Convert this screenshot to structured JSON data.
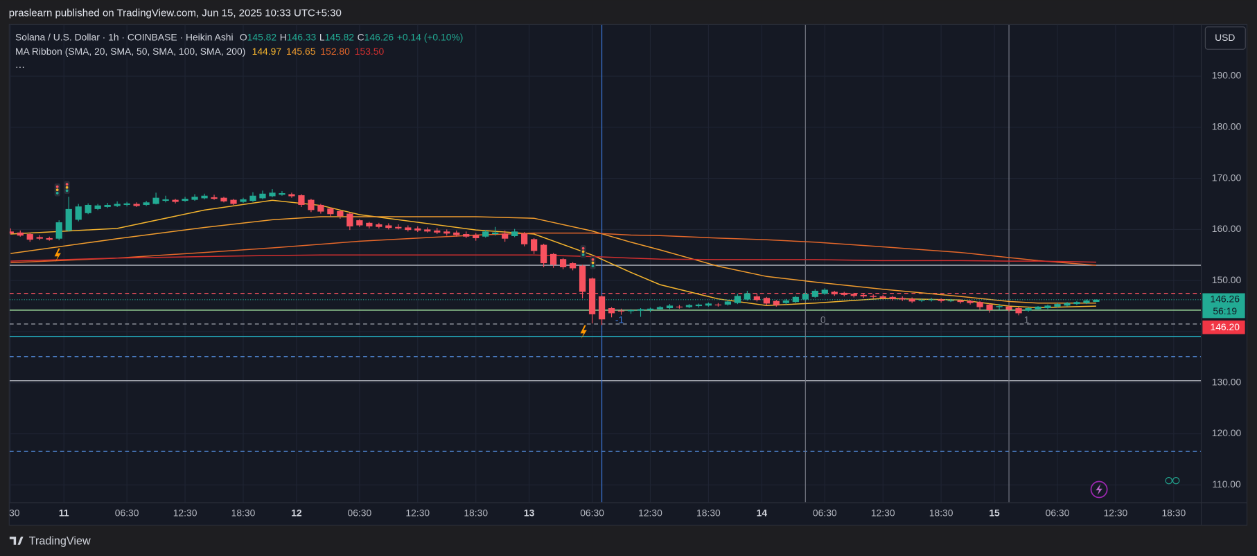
{
  "header": {
    "title": "praslearn published on TradingView.com, Jun 15, 2025 10:33 UTC+5:30"
  },
  "legend": {
    "symbol": "Solana / U.S. Dollar · 1h · COINBASE · Heikin Ashi",
    "ohlc": [
      {
        "label": "O",
        "value": "145.82"
      },
      {
        "label": "H",
        "value": "146.33"
      },
      {
        "label": "L",
        "value": "145.82"
      },
      {
        "label": "C",
        "value": "146.26"
      }
    ],
    "change": "+0.14 (+0.10%)",
    "ma_title": "MA Ribbon (SMA, 20, SMA, 50, SMA, 100, SMA, 200)",
    "ma_values": [
      "144.97",
      "145.65",
      "152.80",
      "153.50"
    ],
    "more": "···"
  },
  "currency": "USD",
  "price_tags": {
    "countdown": "56:19",
    "other": "146.20"
  },
  "footer": {
    "brand": "TradingView"
  },
  "chart_data": {
    "type": "candlestick",
    "up_color": "#22ab94",
    "down_color": "#f7525f",
    "grid": true,
    "xlim": [
      -5.6,
      117.3
    ],
    "ylim": [
      106.6,
      200.2
    ],
    "xticks": [
      {
        "value": -5.5,
        "label": "30"
      },
      {
        "value": 0,
        "label": "11"
      },
      {
        "value": 6.5,
        "label": "06:30"
      },
      {
        "value": 12.5,
        "label": "12:30"
      },
      {
        "value": 18.5,
        "label": "18:30"
      },
      {
        "value": 24,
        "label": "12"
      },
      {
        "value": 30.5,
        "label": "06:30"
      },
      {
        "value": 36.5,
        "label": "12:30"
      },
      {
        "value": 42.5,
        "label": "18:30"
      },
      {
        "value": 48,
        "label": "13"
      },
      {
        "value": 54.5,
        "label": "06:30"
      },
      {
        "value": 60.5,
        "label": "12:30"
      },
      {
        "value": 66.5,
        "label": "18:30"
      },
      {
        "value": 72,
        "label": "14"
      },
      {
        "value": 78.5,
        "label": "06:30"
      },
      {
        "value": 84.5,
        "label": "12:30"
      },
      {
        "value": 90.5,
        "label": "18:30"
      },
      {
        "value": 96,
        "label": "15"
      },
      {
        "value": 102.5,
        "label": "06:30"
      },
      {
        "value": 108.5,
        "label": "12:30"
      },
      {
        "value": 114.5,
        "label": "18:30"
      }
    ],
    "yticks": [
      {
        "value": 110,
        "label": "110.00"
      },
      {
        "value": 120,
        "label": "120.00"
      },
      {
        "value": 130,
        "label": "130.00"
      },
      {
        "value": 140,
        "label": "140.00"
      },
      {
        "value": 150,
        "label": "150.00"
      },
      {
        "value": 160,
        "label": "160.00"
      },
      {
        "value": 170,
        "label": "170.00"
      },
      {
        "value": 180,
        "label": "180.00"
      },
      {
        "value": 190,
        "label": "190.00"
      }
    ],
    "x": [
      -5.5,
      -4.5,
      -3.5,
      -2.5,
      -1.5,
      -0.5,
      0.5,
      1.5,
      2.5,
      3.5,
      4.5,
      5.5,
      6.5,
      7.5,
      8.5,
      9.5,
      10.5,
      11.5,
      12.5,
      13.5,
      14.5,
      15.5,
      16.5,
      17.5,
      18.5,
      19.5,
      20.5,
      21.5,
      22.5,
      23.5,
      24.5,
      25.5,
      26.5,
      27.5,
      28.5,
      29.5,
      30.5,
      31.5,
      32.5,
      33.5,
      34.5,
      35.5,
      36.5,
      37.5,
      38.5,
      39.5,
      40.5,
      41.5,
      42.5,
      43.5,
      44.5,
      45.5,
      46.5,
      47.5,
      48.5,
      49.5,
      50.5,
      51.5,
      52.5,
      53.5,
      54.5,
      55.5,
      56.5,
      57.5,
      58.5,
      59.5,
      60.5,
      61.5,
      62.5,
      63.5,
      64.5,
      65.5,
      66.5,
      67.5,
      68.5,
      69.5,
      70.5,
      71.5,
      72.5,
      73.5,
      74.5,
      75.5,
      76.5,
      77.5,
      78.5,
      79.5,
      80.5,
      81.5,
      82.5,
      83.5,
      84.5,
      85.5,
      86.5,
      87.5,
      88.5,
      89.5,
      90.5,
      91.5,
      92.5,
      93.5,
      94.5,
      95.5,
      96.5,
      97.5,
      98.5,
      99.5,
      100.5,
      101.5,
      102.5,
      103.5,
      104.5,
      105.5,
      106.5
    ],
    "open": [
      159.6,
      159.4,
      159.1,
      158.5,
      158.3,
      158.2,
      159.8,
      161.9,
      163.2,
      164.0,
      164.4,
      164.6,
      164.8,
      165.0,
      164.8,
      165.0,
      165.6,
      165.8,
      165.6,
      165.8,
      166.1,
      166.3,
      166.2,
      165.8,
      165.4,
      165.6,
      166.1,
      166.5,
      166.8,
      166.9,
      166.7,
      165.8,
      164.8,
      164.1,
      163.6,
      163.1,
      161.8,
      161.3,
      161.0,
      160.8,
      160.5,
      160.4,
      160.2,
      160.0,
      159.8,
      159.6,
      159.4,
      159.1,
      158.9,
      158.6,
      159.1,
      159.2,
      158.7,
      159.2,
      158.1,
      157.0,
      155.2,
      154.2,
      153.4,
      152.9,
      150.4,
      146.9,
      144.6,
      144.1,
      144.0,
      144.1,
      144.2,
      144.4,
      144.6,
      144.9,
      144.8,
      145.0,
      145.1,
      145.3,
      145.3,
      145.6,
      146.3,
      146.9,
      146.6,
      146.0,
      145.6,
      145.8,
      146.3,
      146.8,
      147.4,
      147.8,
      147.6,
      147.4,
      147.2,
      147.0,
      146.9,
      146.8,
      146.6,
      146.4,
      146.2,
      146.2,
      146.3,
      146.1,
      146.1,
      146.0,
      145.8,
      145.3,
      144.8,
      144.9,
      144.6,
      144.1,
      144.4,
      144.6,
      144.9,
      145.1,
      145.4,
      145.6,
      145.82
    ],
    "high": [
      160.2,
      159.8,
      159.4,
      158.9,
      158.6,
      161.8,
      166.4,
      165.0,
      165.1,
      165.0,
      165.2,
      165.5,
      165.4,
      165.3,
      165.6,
      167.2,
      166.6,
      166.0,
      166.4,
      166.9,
      167.0,
      166.8,
      166.4,
      166.0,
      166.2,
      167.3,
      167.6,
      167.9,
      167.5,
      167.2,
      166.9,
      166.0,
      165.0,
      164.3,
      163.8,
      163.3,
      162.0,
      161.5,
      161.3,
      161.2,
      161.0,
      160.8,
      160.6,
      160.4,
      160.3,
      160.0,
      159.8,
      159.6,
      159.3,
      159.9,
      160.5,
      159.8,
      160.1,
      159.5,
      158.3,
      157.2,
      155.4,
      154.4,
      153.6,
      153.1,
      150.6,
      147.1,
      144.8,
      144.5,
      144.4,
      144.6,
      144.7,
      145.0,
      145.4,
      145.2,
      145.4,
      145.5,
      145.7,
      145.6,
      146.2,
      147.4,
      148.0,
      147.5,
      146.8,
      146.2,
      146.4,
      147.0,
      147.7,
      148.3,
      148.5,
      148.0,
      147.8,
      147.6,
      147.5,
      147.3,
      147.2,
      147.0,
      146.9,
      146.7,
      146.5,
      146.6,
      146.5,
      146.4,
      146.3,
      146.2,
      146.0,
      145.5,
      145.4,
      145.1,
      144.8,
      144.8,
      145.0,
      145.3,
      145.6,
      145.8,
      146.0,
      146.3,
      146.33
    ],
    "low": [
      159.0,
      158.6,
      157.6,
      157.9,
      157.8,
      157.9,
      159.6,
      161.6,
      163.0,
      163.8,
      164.2,
      164.4,
      164.5,
      164.4,
      164.6,
      164.9,
      165.3,
      165.1,
      165.4,
      165.6,
      165.9,
      165.8,
      165.3,
      164.8,
      165.2,
      165.4,
      165.9,
      166.3,
      166.6,
      166.2,
      164.4,
      163.4,
      163.1,
      162.6,
      162.1,
      159.9,
      160.5,
      160.2,
      160.2,
      160.0,
      160.0,
      159.6,
      159.5,
      159.4,
      159.1,
      158.8,
      158.6,
      158.3,
      157.8,
      158.4,
      158.8,
      157.6,
      158.5,
      156.7,
      155.2,
      152.6,
      152.5,
      152.2,
      152.0,
      146.5,
      141.6,
      141.3,
      142.8,
      143.3,
      143.5,
      142.9,
      143.8,
      144.2,
      144.4,
      144.5,
      144.6,
      144.7,
      144.9,
      144.9,
      145.1,
      145.4,
      146.1,
      145.9,
      145.1,
      144.9,
      145.3,
      145.6,
      146.1,
      146.6,
      147.2,
      147.0,
      146.9,
      146.7,
      146.6,
      146.5,
      146.3,
      146.1,
      146.0,
      145.6,
      145.8,
      145.9,
      145.7,
      145.8,
      145.5,
      145.3,
      144.3,
      143.7,
      144.3,
      143.9,
      143.2,
      143.9,
      144.2,
      144.4,
      144.7,
      144.9,
      145.2,
      145.4,
      145.82
    ],
    "close": [
      159.2,
      158.8,
      158.0,
      158.2,
      158.0,
      161.4,
      164.0,
      164.5,
      164.8,
      164.7,
      164.8,
      165.0,
      165.1,
      164.6,
      165.3,
      166.2,
      165.9,
      165.4,
      166.0,
      166.4,
      166.6,
      166.0,
      165.5,
      165.0,
      165.9,
      166.6,
      167.0,
      167.2,
      167.1,
      166.5,
      164.8,
      163.8,
      163.5,
      163.0,
      162.6,
      160.6,
      160.8,
      160.6,
      160.5,
      160.3,
      160.2,
      159.9,
      159.8,
      159.6,
      159.4,
      159.2,
      158.9,
      158.6,
      158.3,
      159.6,
      159.4,
      158.2,
      159.6,
      157.1,
      155.8,
      153.4,
      153.1,
      152.6,
      152.4,
      147.8,
      143.4,
      142.4,
      143.6,
      144.0,
      144.2,
      144.4,
      144.5,
      144.8,
      145.1,
      144.8,
      145.2,
      145.3,
      145.5,
      145.2,
      145.9,
      147.0,
      147.5,
      146.2,
      145.5,
      145.2,
      146.1,
      146.8,
      147.4,
      148.0,
      148.2,
      147.3,
      147.2,
      147.0,
      146.9,
      146.8,
      146.6,
      146.4,
      146.3,
      145.9,
      146.2,
      146.3,
      146.0,
      146.1,
      145.8,
      145.6,
      144.8,
      144.2,
      145.0,
      144.3,
      143.6,
      144.6,
      144.9,
      145.1,
      145.4,
      145.6,
      145.8,
      146.1,
      146.26
    ],
    "ma_lines": [
      {
        "color": "#f5b52e",
        "x": [
          -5.5,
          5.5,
          14.5,
          21.5,
          26.5,
          30.5,
          42.5,
          48.5,
          54.5,
          58.5,
          61.5,
          67.5,
          72.5,
          77.5,
          84.5,
          92.5,
          97.5,
          100.5,
          106.5
        ],
        "values": [
          159.1,
          160.2,
          163.8,
          165.7,
          164.7,
          162.9,
          159.9,
          159.1,
          155.0,
          151.6,
          149.2,
          146.4,
          145.1,
          145.6,
          146.5,
          146.2,
          145.0,
          144.7,
          145.0
        ]
      },
      {
        "color": "#f29d2e",
        "x": [
          -5.5,
          5.5,
          14.5,
          21.5,
          26.5,
          30.5,
          42.5,
          48.5,
          54.5,
          58.5,
          61.5,
          67.5,
          72.5,
          77.5,
          84.5,
          92.5,
          97.5,
          100.5,
          106.5
        ],
        "values": [
          155.3,
          158.2,
          160.4,
          161.9,
          162.5,
          162.5,
          162.5,
          162.2,
          159.7,
          157.5,
          156.0,
          152.8,
          150.8,
          149.7,
          148.3,
          146.9,
          145.9,
          145.6,
          145.6
        ]
      },
      {
        "color": "#e5672a",
        "x": [
          -5.5,
          5.5,
          14.5,
          21.5,
          26.5,
          30.5,
          42.5,
          48.5,
          54.5,
          58.5,
          61.5,
          67.5,
          72.5,
          77.5,
          84.5,
          92.5,
          97.5,
          100.5,
          106.5
        ],
        "values": [
          153.5,
          154.4,
          155.5,
          156.4,
          157.1,
          157.7,
          158.9,
          159.3,
          159.3,
          158.9,
          158.8,
          158.3,
          158.0,
          157.5,
          156.6,
          155.5,
          154.5,
          153.9,
          153.0
        ]
      },
      {
        "color": "#d32f2f",
        "x": [
          -5.5,
          5.5,
          14.5,
          21.5,
          26.5,
          30.5,
          42.5,
          48.5,
          54.5,
          58.5,
          61.5,
          67.5,
          72.5,
          77.5,
          84.5,
          92.5,
          97.5,
          100.5,
          106.5
        ],
        "values": [
          153.8,
          154.4,
          154.7,
          154.9,
          155.0,
          155.0,
          155.0,
          155.0,
          154.7,
          154.4,
          154.2,
          154.1,
          154.1,
          154.1,
          153.9,
          153.9,
          153.8,
          153.8,
          153.6
        ]
      }
    ],
    "levels": [
      {
        "value": 153.0,
        "color": "#b2b5be",
        "dashed": false
      },
      {
        "value": 147.5,
        "color": "#f7525f",
        "dashed": true
      },
      {
        "value": 144.2,
        "color": "#a5e4a0",
        "dashed": false
      },
      {
        "value": 141.5,
        "color": "#9598a1",
        "dashed": true
      },
      {
        "value": 139.0,
        "color": "#26c6da",
        "dashed": false
      },
      {
        "value": 135.1,
        "color": "#5b9cf6",
        "dashed": true
      },
      {
        "value": 130.4,
        "color": "#b2b5be",
        "dashed": false
      },
      {
        "value": 116.6,
        "color": "#5b9cf6",
        "dashed": true
      }
    ],
    "vlines": [
      {
        "x": 55.5,
        "label": "-1",
        "color": "#3d7be0"
      },
      {
        "x": 76.5,
        "label": "0",
        "color": "#787b86"
      },
      {
        "x": 97.5,
        "label": "1",
        "color": "#787b86"
      }
    ]
  }
}
